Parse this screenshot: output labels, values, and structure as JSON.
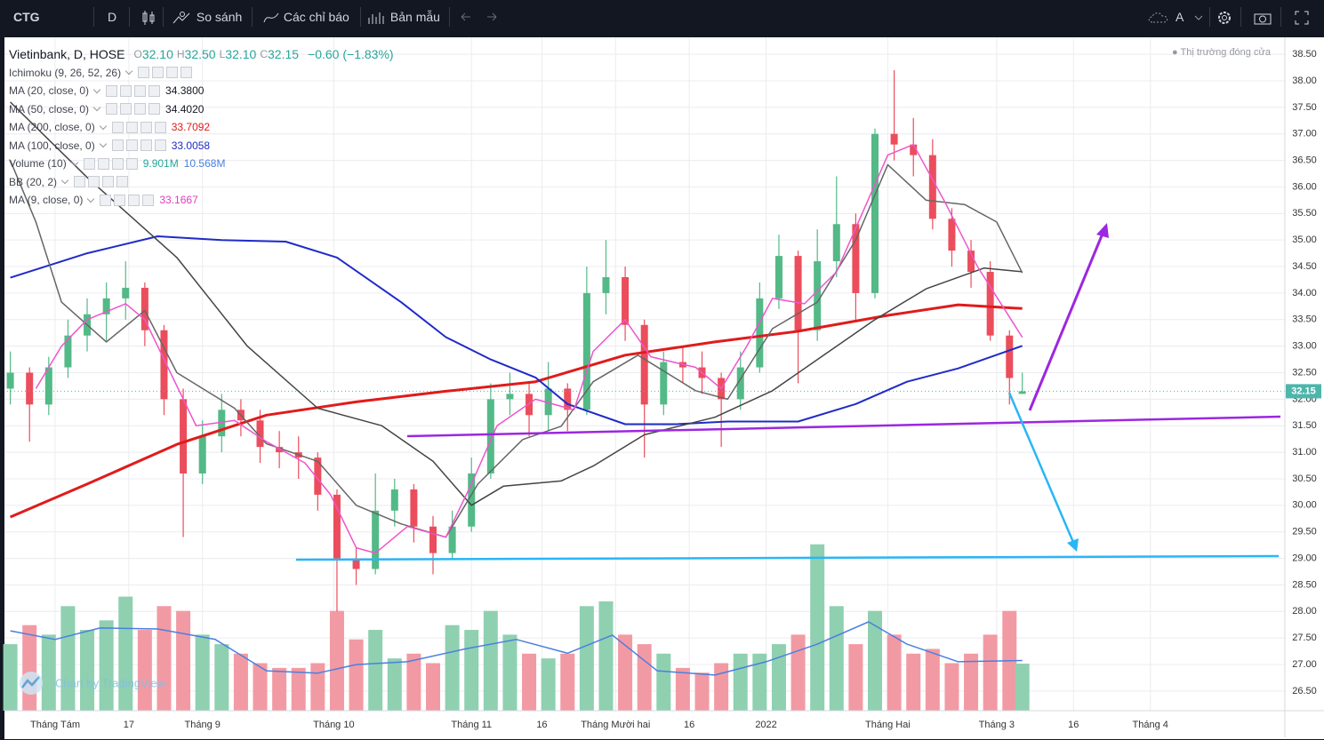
{
  "toolbar": {
    "symbol": "CTG",
    "interval": "D",
    "compare": "So sánh",
    "indicators": "Các chỉ báo",
    "templates": "Bản mẫu",
    "font": "A"
  },
  "legend": {
    "title": "Vietinbank, D, HOSE",
    "ohlc_letters": [
      "O",
      "H",
      "L",
      "C"
    ],
    "ohlc": [
      "32.10",
      "32.50",
      "32.10",
      "32.15"
    ],
    "change": "−0.60 (−1.83%)",
    "value_color": "#26a69a",
    "indicators": [
      {
        "name": "Ichimoku (9, 26, 52, 26)"
      },
      {
        "name": "MA (20, close, 0)",
        "values": [
          "34.3800"
        ],
        "colors": [
          "#131722"
        ]
      },
      {
        "name": "MA (50, close, 0)",
        "values": [
          "34.4020"
        ],
        "colors": [
          "#131722"
        ]
      },
      {
        "name": "MA (200, close, 0)",
        "values": [
          "33.7092"
        ],
        "colors": [
          "#e01b1b"
        ]
      },
      {
        "name": "MA (100, close, 0)",
        "values": [
          "33.0058"
        ],
        "colors": [
          "#1f2bc7"
        ]
      },
      {
        "name": "Volume (10)",
        "values": [
          "9.901M",
          "10.568M"
        ],
        "colors": [
          "#26a69a",
          "#4a7fe0"
        ]
      },
      {
        "name": "BB (20, 2)"
      },
      {
        "name": "MA (9, close, 0)",
        "values": [
          "33.1667"
        ],
        "colors": [
          "#e23bbd"
        ]
      }
    ]
  },
  "market_status": "Thị trường đóng cửa",
  "watermark": "Chart by TradingView",
  "chart_data": {
    "type": "candlestick",
    "xlim": [
      -0.5,
      199
    ],
    "ylim": [
      26.13,
      38.77
    ],
    "grid": true,
    "xticks": [
      {
        "value": 7,
        "label": "Tháng Tám"
      },
      {
        "value": 18.5,
        "label": "17"
      },
      {
        "value": 30,
        "label": "Tháng 9"
      },
      {
        "value": 50.5,
        "label": "Tháng 10"
      },
      {
        "value": 72,
        "label": "Tháng 11"
      },
      {
        "value": 83,
        "label": "16"
      },
      {
        "value": 94.5,
        "label": "Tháng Mười hai"
      },
      {
        "value": 106,
        "label": "16"
      },
      {
        "value": 118,
        "label": "2022"
      },
      {
        "value": 137,
        "label": "Tháng Hai"
      },
      {
        "value": 154,
        "label": "Tháng 3"
      },
      {
        "value": 166,
        "label": "16"
      },
      {
        "value": 178,
        "label": "Tháng 4"
      }
    ],
    "yticks": [
      {
        "value": 26.5,
        "label": "26.50"
      },
      {
        "value": 27,
        "label": "27.00"
      },
      {
        "value": 27.5,
        "label": "27.50"
      },
      {
        "value": 28,
        "label": "28.00"
      },
      {
        "value": 28.5,
        "label": "28.50"
      },
      {
        "value": 29,
        "label": "29.00"
      },
      {
        "value": 29.5,
        "label": "29.50"
      },
      {
        "value": 30,
        "label": "30.00"
      },
      {
        "value": 30.5,
        "label": "30.50"
      },
      {
        "value": 31,
        "label": "31.00"
      },
      {
        "value": 31.5,
        "label": "31.50"
      },
      {
        "value": 32,
        "label": "32.00"
      },
      {
        "value": 32.5,
        "label": "32.50"
      },
      {
        "value": 33,
        "label": "33.00"
      },
      {
        "value": 33.5,
        "label": "33.50"
      },
      {
        "value": 34,
        "label": "34.00"
      },
      {
        "value": 34.5,
        "label": "34.50"
      },
      {
        "value": 35,
        "label": "35.00"
      },
      {
        "value": 35.5,
        "label": "35.50"
      },
      {
        "value": 36,
        "label": "36.00"
      },
      {
        "value": 36.5,
        "label": "36.50"
      },
      {
        "value": 37,
        "label": "37.00"
      },
      {
        "value": 37.5,
        "label": "37.50"
      },
      {
        "value": 38,
        "label": "38.00"
      },
      {
        "value": 38.5,
        "label": "38.50"
      }
    ],
    "candles": {
      "up_color": "#53b987",
      "down_color": "#eb4d5c",
      "x": [
        0,
        3,
        6,
        9,
        12,
        15,
        18,
        21,
        24,
        27,
        30,
        33,
        36,
        39,
        42,
        45,
        48,
        51,
        54,
        57,
        60,
        63,
        66,
        69,
        72,
        75,
        78,
        81,
        84,
        87,
        90,
        93,
        96,
        99,
        102,
        105,
        108,
        111,
        114,
        117,
        120,
        123,
        126,
        129,
        132,
        135,
        138,
        141,
        144,
        147,
        150,
        153,
        156,
        158
      ],
      "open": [
        32.2,
        32.5,
        31.9,
        32.6,
        33.2,
        33.6,
        33.9,
        34.1,
        33.3,
        32.0,
        30.6,
        31.3,
        31.8,
        31.6,
        31.1,
        31.0,
        30.9,
        30.2,
        29.0,
        28.8,
        29.9,
        30.3,
        29.6,
        29.1,
        29.6,
        30.6,
        32.0,
        32.1,
        31.7,
        32.2,
        31.8,
        34.0,
        34.3,
        33.4,
        31.9,
        32.7,
        32.6,
        32.4,
        32.0,
        32.6,
        33.9,
        34.7,
        33.3,
        34.6,
        35.3,
        34.0,
        37.0,
        36.8,
        36.6,
        35.4,
        34.8,
        34.4,
        33.2,
        32.1
      ],
      "high": [
        32.9,
        32.6,
        32.8,
        33.5,
        33.9,
        34.2,
        34.6,
        34.2,
        33.4,
        32.2,
        31.6,
        32.1,
        32.0,
        31.8,
        31.4,
        31.3,
        31.0,
        30.3,
        29.2,
        30.6,
        30.5,
        30.4,
        29.8,
        29.9,
        30.9,
        32.3,
        32.5,
        32.3,
        32.7,
        32.3,
        34.5,
        35.0,
        34.5,
        33.5,
        32.9,
        33.0,
        32.9,
        32.5,
        32.9,
        34.2,
        35.1,
        34.8,
        35.2,
        36.2,
        35.5,
        37.1,
        38.2,
        37.3,
        36.9,
        35.6,
        35.0,
        34.6,
        33.3,
        32.5
      ],
      "low": [
        31.9,
        31.2,
        31.7,
        32.4,
        32.9,
        33.1,
        33.5,
        33.0,
        31.7,
        29.4,
        30.4,
        31.0,
        31.3,
        30.8,
        30.7,
        30.5,
        29.9,
        28.0,
        28.5,
        28.7,
        29.6,
        29.3,
        28.7,
        29.0,
        29.5,
        30.5,
        31.7,
        31.3,
        31.4,
        31.4,
        31.7,
        33.6,
        33.1,
        30.9,
        31.7,
        32.3,
        32.1,
        31.1,
        31.8,
        32.5,
        33.7,
        32.3,
        33.1,
        34.3,
        33.5,
        33.9,
        36.5,
        36.2,
        35.2,
        34.5,
        34.1,
        33.1,
        31.9,
        32.1
      ],
      "close": [
        32.5,
        31.9,
        32.6,
        33.2,
        33.6,
        33.9,
        34.1,
        33.3,
        32.0,
        30.6,
        31.3,
        31.8,
        31.6,
        31.1,
        31.0,
        30.9,
        30.2,
        29.0,
        28.8,
        29.9,
        30.3,
        29.6,
        29.1,
        29.6,
        30.6,
        32.0,
        32.1,
        31.7,
        32.2,
        31.8,
        34.0,
        34.3,
        33.4,
        31.9,
        32.7,
        32.6,
        32.4,
        32.0,
        32.6,
        33.9,
        34.7,
        33.3,
        34.6,
        35.3,
        34.0,
        37.0,
        36.8,
        36.6,
        35.4,
        34.8,
        34.4,
        33.2,
        32.4,
        32.15
      ]
    },
    "last_price_color": "#4db6ac",
    "volume": {
      "vlim": [
        0,
        40
      ],
      "up_color": "#8fd0b0",
      "down_color": "#f29aa3",
      "values": [
        14,
        18,
        16,
        22,
        17,
        19,
        24,
        17,
        22,
        21,
        16,
        14,
        12,
        10,
        9,
        9,
        10,
        21,
        15,
        17,
        11,
        12,
        10,
        18,
        17,
        21,
        16,
        12,
        11,
        12,
        22,
        23,
        16,
        14,
        12,
        9,
        8,
        10,
        12,
        12,
        14,
        16,
        35,
        22,
        14,
        21,
        16,
        12,
        13,
        10,
        12,
        16,
        21,
        9.901
      ]
    },
    "lines": [
      {
        "color": "#4a7fe0",
        "width": 1.5,
        "axis": "volume",
        "x": [
          0,
          7,
          14,
          23,
          32,
          40,
          48,
          54,
          62,
          71,
          79,
          87,
          94,
          101,
          110,
          118,
          126,
          134,
          140,
          148,
          158
        ],
        "values": [
          16.8,
          15,
          17.4,
          17.2,
          15,
          8.4,
          7.9,
          9.7,
          10.3,
          13,
          15,
          12.1,
          15.9,
          8.4,
          7.5,
          10.3,
          14,
          18.7,
          14,
          10.3,
          10.568
        ]
      },
      {
        "color": "#e01b1b",
        "width": 3,
        "x": [
          0,
          12,
          26,
          40,
          54,
          68,
          82,
          96,
          110,
          123,
          137,
          148,
          158
        ],
        "values": [
          29.78,
          30.4,
          31.15,
          31.7,
          31.95,
          32.15,
          32.33,
          32.83,
          33.08,
          33.28,
          33.58,
          33.78,
          33.7092
        ]
      },
      {
        "color": "#1f2bc7",
        "width": 2,
        "x": [
          0,
          12,
          23,
          33,
          43,
          51,
          61,
          68,
          75,
          82,
          87,
          96,
          104,
          112,
          123,
          132,
          140,
          148,
          158
        ],
        "values": [
          34.29,
          34.75,
          35.07,
          35.0,
          34.97,
          34.67,
          33.83,
          33.17,
          32.75,
          32.41,
          31.91,
          31.53,
          31.53,
          31.58,
          31.58,
          31.91,
          32.33,
          32.58,
          33.0058
        ]
      },
      {
        "color": "#444444",
        "width": 1.5,
        "x": [
          0,
          12,
          26,
          37,
          48,
          58,
          66,
          72,
          77,
          86,
          91,
          99,
          110,
          119,
          127,
          135,
          143,
          152,
          158
        ],
        "values": [
          37.6,
          36.18,
          34.67,
          33.0,
          31.83,
          31.5,
          30.83,
          30.0,
          30.36,
          30.46,
          30.74,
          31.33,
          31.66,
          32.16,
          32.83,
          33.5,
          34.08,
          34.47,
          34.402
        ]
      },
      {
        "color": "#666666",
        "width": 1.5,
        "x": [
          0,
          4,
          8,
          15,
          21,
          26,
          35,
          40,
          48,
          54,
          61,
          68,
          73,
          80,
          86,
          91,
          98,
          107,
          112,
          119,
          126,
          132,
          137,
          143,
          149,
          154,
          158
        ],
        "values": [
          36.5,
          35.34,
          33.83,
          33.08,
          33.67,
          32.5,
          31.83,
          31.16,
          30.83,
          30.0,
          29.65,
          29.4,
          30.4,
          31.24,
          31.49,
          32.33,
          32.83,
          32.16,
          32.0,
          33.33,
          33.83,
          35.0,
          36.42,
          35.75,
          35.67,
          35.34,
          34.38
        ]
      },
      {
        "color": "#ee55cc",
        "width": 1.5,
        "x": [
          4,
          8,
          12,
          18,
          21,
          25,
          29,
          35,
          40,
          46,
          50,
          54,
          57,
          62,
          68,
          72,
          76,
          82,
          88,
          91,
          96,
          100,
          107,
          111,
          115,
          119,
          124,
          129,
          133,
          137,
          141,
          146,
          151,
          158
        ],
        "values": [
          32.2,
          33.0,
          33.5,
          33.8,
          33.5,
          32.5,
          31.5,
          31.6,
          31.2,
          30.8,
          30.2,
          29.2,
          29.1,
          29.6,
          29.4,
          30.4,
          31.5,
          32.0,
          31.8,
          32.9,
          33.5,
          32.8,
          32.6,
          32.2,
          33.0,
          33.9,
          33.8,
          34.4,
          35.5,
          36.6,
          36.8,
          35.7,
          34.5,
          33.1667
        ]
      }
    ]
  }
}
